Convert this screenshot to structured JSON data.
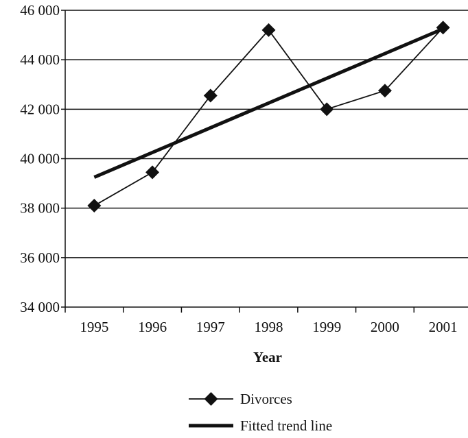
{
  "chart_data": {
    "type": "line",
    "title": "",
    "xlabel": "Year",
    "ylabel": "",
    "categories": [
      "1995",
      "1996",
      "1997",
      "1998",
      "1999",
      "2000",
      "2001"
    ],
    "ylim": [
      34000,
      46000
    ],
    "y_ticks": [
      34000,
      36000,
      38000,
      40000,
      42000,
      44000,
      46000
    ],
    "y_tick_labels": [
      "34 000",
      "36 000",
      "38 000",
      "40 000",
      "42 000",
      "44 000",
      "46 000"
    ],
    "grid": "horizontal",
    "legend_position": "bottom",
    "series": [
      {
        "name": "Divorces",
        "marker": "diamond",
        "color": "#111111",
        "values": [
          38100,
          39450,
          42550,
          45200,
          42000,
          42750,
          45300
        ]
      },
      {
        "name": "Fitted trend line",
        "marker": "none",
        "color": "#111111",
        "values": [
          39250,
          40250,
          41250,
          42250,
          43250,
          44250,
          45250
        ]
      }
    ]
  }
}
